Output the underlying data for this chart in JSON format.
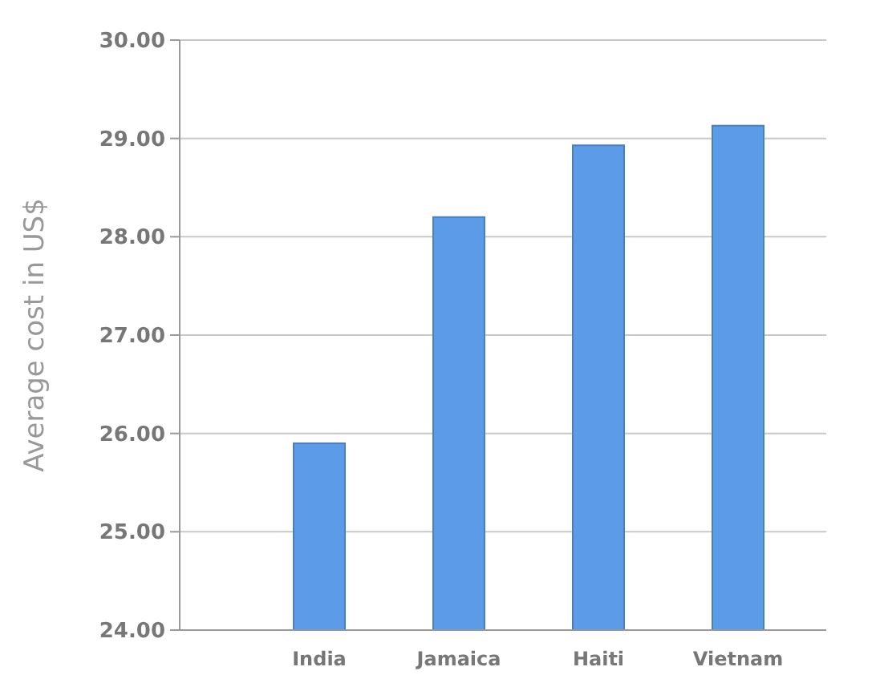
{
  "chart_data": {
    "type": "bar",
    "ylabel": "Average cost in US$",
    "categories": [
      "India",
      "Jamaica",
      "Haiti",
      "Vietnam"
    ],
    "values": [
      25.9,
      28.2,
      28.93,
      29.13
    ],
    "color": "#5b9be8",
    "ylim": [
      24,
      30
    ],
    "yticks": [
      {
        "value": 24,
        "label": "24.00"
      },
      {
        "value": 25,
        "label": "25.00"
      },
      {
        "value": 26,
        "label": "26.00"
      },
      {
        "value": 27,
        "label": "27.00"
      },
      {
        "value": 28,
        "label": "28.00"
      },
      {
        "value": 29,
        "label": "29.00"
      },
      {
        "value": 30,
        "label": "30.00"
      }
    ],
    "grid": "y"
  }
}
